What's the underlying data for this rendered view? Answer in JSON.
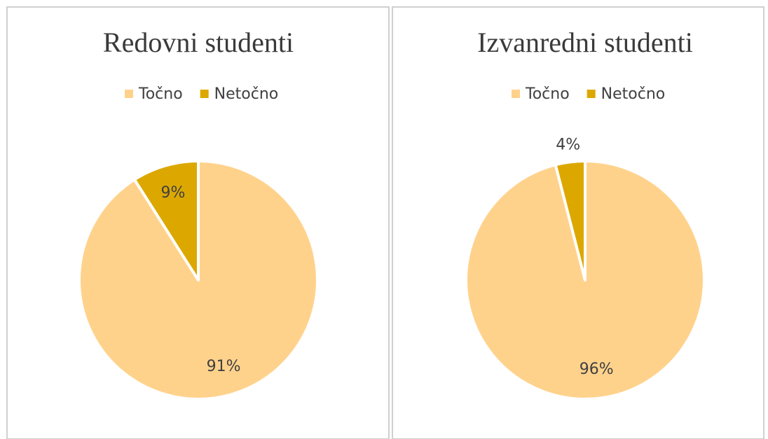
{
  "chart_data": [
    {
      "type": "pie",
      "title": "Redovni studenti",
      "categories": [
        "Točno",
        "Netočno"
      ],
      "values": [
        91,
        9
      ],
      "value_labels": [
        "91%",
        "9%"
      ],
      "colors": [
        "#ffd28c",
        "#dca800"
      ],
      "legend": "top"
    },
    {
      "type": "pie",
      "title": "Izvanredni studenti",
      "categories": [
        "Točno",
        "Netočno"
      ],
      "values": [
        96,
        4
      ],
      "value_labels": [
        "96%",
        "4%"
      ],
      "colors": [
        "#ffd28c",
        "#dca800"
      ],
      "legend": "top"
    }
  ]
}
